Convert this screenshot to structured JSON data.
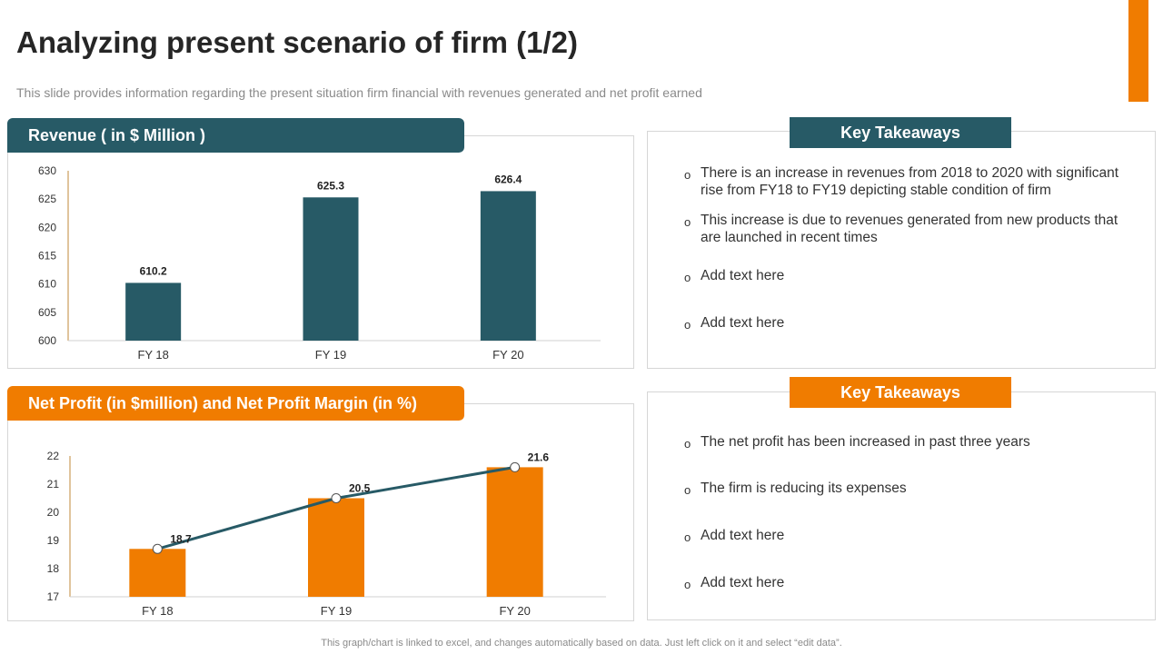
{
  "title": "Analyzing present scenario of firm (1/2)",
  "subtitle": "This slide provides information regarding the present situation firm financial with revenues generated and net profit earned",
  "footer": "This graph/chart is linked to excel, and changes automatically based on data. Just left click on it and select “edit data”.",
  "colors": {
    "teal": "#275A66",
    "orange": "#F07C00",
    "line": "#275A66"
  },
  "revenue_panel": {
    "header": "Revenue ( in $ Million )",
    "takeaways_header": "Key Takeaways",
    "takeaways": [
      "There is an increase in revenues from 2018 to 2020 with significant rise from FY18 to FY19 depicting stable condition of firm",
      "This increase is due to revenues generated from new products that are launched in recent times",
      "Add text here",
      "Add text here"
    ]
  },
  "profit_panel": {
    "header": "Net Profit (in $million) and Net Profit Margin (in %)",
    "takeaways_header": "Key Takeaways",
    "takeaways": [
      "The net profit has been increased in past three years",
      "The firm is reducing its expenses",
      "Add text here",
      "Add text here"
    ]
  },
  "chart_data": [
    {
      "type": "bar",
      "title": "Revenue ( in $ Million )",
      "categories": [
        "FY 18",
        "FY 19",
        "FY 20"
      ],
      "values": [
        610.2,
        625.3,
        626.4
      ],
      "data_labels": [
        "610.2",
        "625.3",
        "626.4"
      ],
      "yticks": [
        600,
        605,
        610,
        615,
        620,
        625,
        630
      ],
      "ylim": [
        600,
        630
      ],
      "color": "#275A66",
      "grid": false,
      "legend": "none"
    },
    {
      "type": "bar+line",
      "title": "Net Profit (in $million) and Net Profit Margin (in %)",
      "categories": [
        "FY 18",
        "FY 19",
        "FY 20"
      ],
      "series": [
        {
          "kind": "bar",
          "values": [
            18.7,
            20.5,
            21.6
          ],
          "color": "#F07C00"
        },
        {
          "kind": "line",
          "values": [
            18.7,
            20.5,
            21.6
          ],
          "color": "#275A66",
          "data_labels": [
            "18.7",
            "20.5",
            "21.6"
          ]
        }
      ],
      "yticks": [
        17,
        18,
        19,
        20,
        21,
        22
      ],
      "ylim": [
        17,
        22
      ],
      "grid": false,
      "legend": "none"
    }
  ]
}
